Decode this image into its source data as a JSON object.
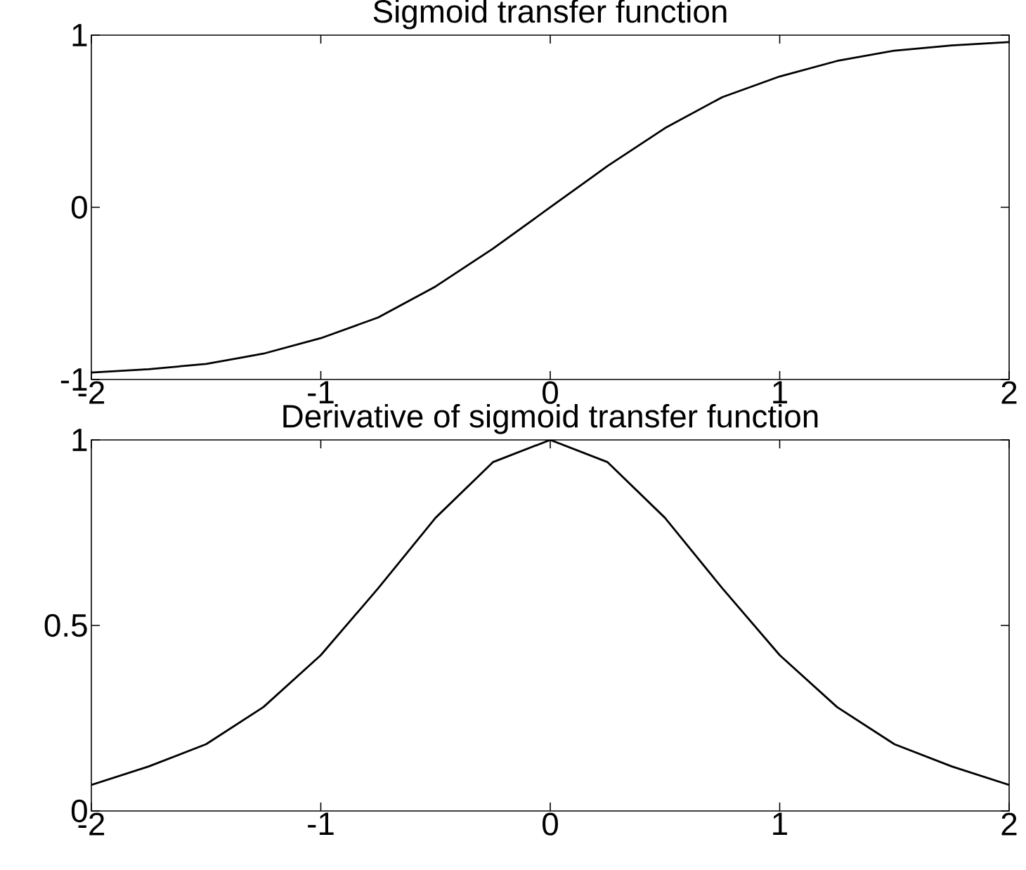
{
  "chart_data": [
    {
      "type": "line",
      "title": "Sigmoid transfer function",
      "x": [
        -2,
        -1.75,
        -1.5,
        -1.25,
        -1,
        -0.75,
        -0.5,
        -0.25,
        0,
        0.25,
        0.5,
        0.75,
        1,
        1.25,
        1.5,
        1.75,
        2
      ],
      "values": [
        -0.96,
        -0.94,
        -0.91,
        -0.85,
        -0.76,
        -0.64,
        -0.46,
        -0.24,
        0,
        0.24,
        0.46,
        0.64,
        0.76,
        0.85,
        0.91,
        0.94,
        0.96
      ],
      "color": "#000000",
      "xlim": [
        -2,
        2
      ],
      "ylim": [
        -1,
        1
      ],
      "xticks": [
        -2,
        -1,
        0,
        1,
        2
      ],
      "yticks": [
        -1,
        0,
        1
      ]
    },
    {
      "type": "line",
      "title": "Derivative of sigmoid transfer function",
      "x": [
        -2,
        -1.75,
        -1.5,
        -1.25,
        -1,
        -0.75,
        -0.5,
        -0.25,
        0,
        0.25,
        0.5,
        0.75,
        1,
        1.25,
        1.5,
        1.75,
        2
      ],
      "values": [
        0.07,
        0.12,
        0.18,
        0.28,
        0.42,
        0.6,
        0.79,
        0.94,
        1,
        0.94,
        0.79,
        0.6,
        0.42,
        0.28,
        0.18,
        0.12,
        0.07
      ],
      "color": "#000000",
      "xlim": [
        -2,
        2
      ],
      "ylim": [
        0,
        1
      ],
      "xticks": [
        -2,
        -1,
        0,
        1,
        2
      ],
      "yticks": [
        0,
        0.5,
        1
      ]
    }
  ]
}
